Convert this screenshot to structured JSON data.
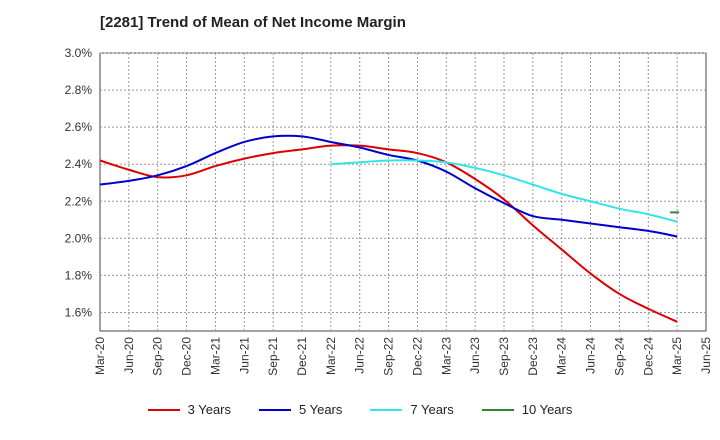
{
  "chart_data": {
    "type": "line",
    "title": "[2281]  Trend of Mean of Net Income Margin",
    "xlabel": "",
    "ylabel": "",
    "x_ticks": [
      "Mar-20",
      "Jun-20",
      "Sep-20",
      "Dec-20",
      "Mar-21",
      "Jun-21",
      "Sep-21",
      "Dec-21",
      "Mar-22",
      "Jun-22",
      "Sep-22",
      "Dec-22",
      "Mar-23",
      "Jun-23",
      "Sep-23",
      "Dec-23",
      "Mar-24",
      "Jun-24",
      "Sep-24",
      "Dec-24",
      "Mar-25",
      "Jun-25"
    ],
    "y_ticks": [
      "1.6%",
      "1.8%",
      "2.0%",
      "2.2%",
      "2.4%",
      "2.6%",
      "2.8%",
      "3.0%"
    ],
    "ylim": [
      1.5,
      3.0
    ],
    "grid": true,
    "legend_position": "bottom",
    "x": [
      "Mar-20",
      "Jun-20",
      "Sep-20",
      "Dec-20",
      "Mar-21",
      "Jun-21",
      "Sep-21",
      "Dec-21",
      "Mar-22",
      "Jun-22",
      "Sep-22",
      "Dec-22",
      "Mar-23",
      "Jun-23",
      "Sep-23",
      "Dec-23",
      "Mar-24",
      "Jun-24",
      "Sep-24",
      "Dec-24",
      "Mar-25"
    ],
    "series": [
      {
        "name": "3 Years",
        "color": "#dd0000",
        "values": [
          2.42,
          2.37,
          2.33,
          2.34,
          2.39,
          2.43,
          2.46,
          2.48,
          2.5,
          2.5,
          2.48,
          2.46,
          2.41,
          2.32,
          2.21,
          2.07,
          1.94,
          1.81,
          1.7,
          1.62,
          1.55
        ]
      },
      {
        "name": "5 Years",
        "color": "#0000cc",
        "values": [
          2.29,
          2.31,
          2.34,
          2.39,
          2.46,
          2.52,
          2.55,
          2.55,
          2.52,
          2.49,
          2.45,
          2.42,
          2.36,
          2.27,
          2.19,
          2.12,
          2.1,
          2.08,
          2.06,
          2.04,
          2.01
        ]
      },
      {
        "name": "7 Years",
        "color": "#33e5e5",
        "values": [
          null,
          null,
          null,
          null,
          null,
          null,
          null,
          null,
          2.4,
          2.41,
          2.42,
          2.42,
          2.41,
          2.38,
          2.34,
          2.29,
          2.24,
          2.2,
          2.16,
          2.13,
          2.09
        ]
      },
      {
        "name": "10 Years",
        "color": "#2d8a2d",
        "values": [
          null,
          null,
          null,
          null,
          null,
          null,
          null,
          null,
          null,
          null,
          null,
          null,
          null,
          null,
          null,
          null,
          null,
          null,
          null,
          null,
          2.14
        ]
      }
    ]
  }
}
